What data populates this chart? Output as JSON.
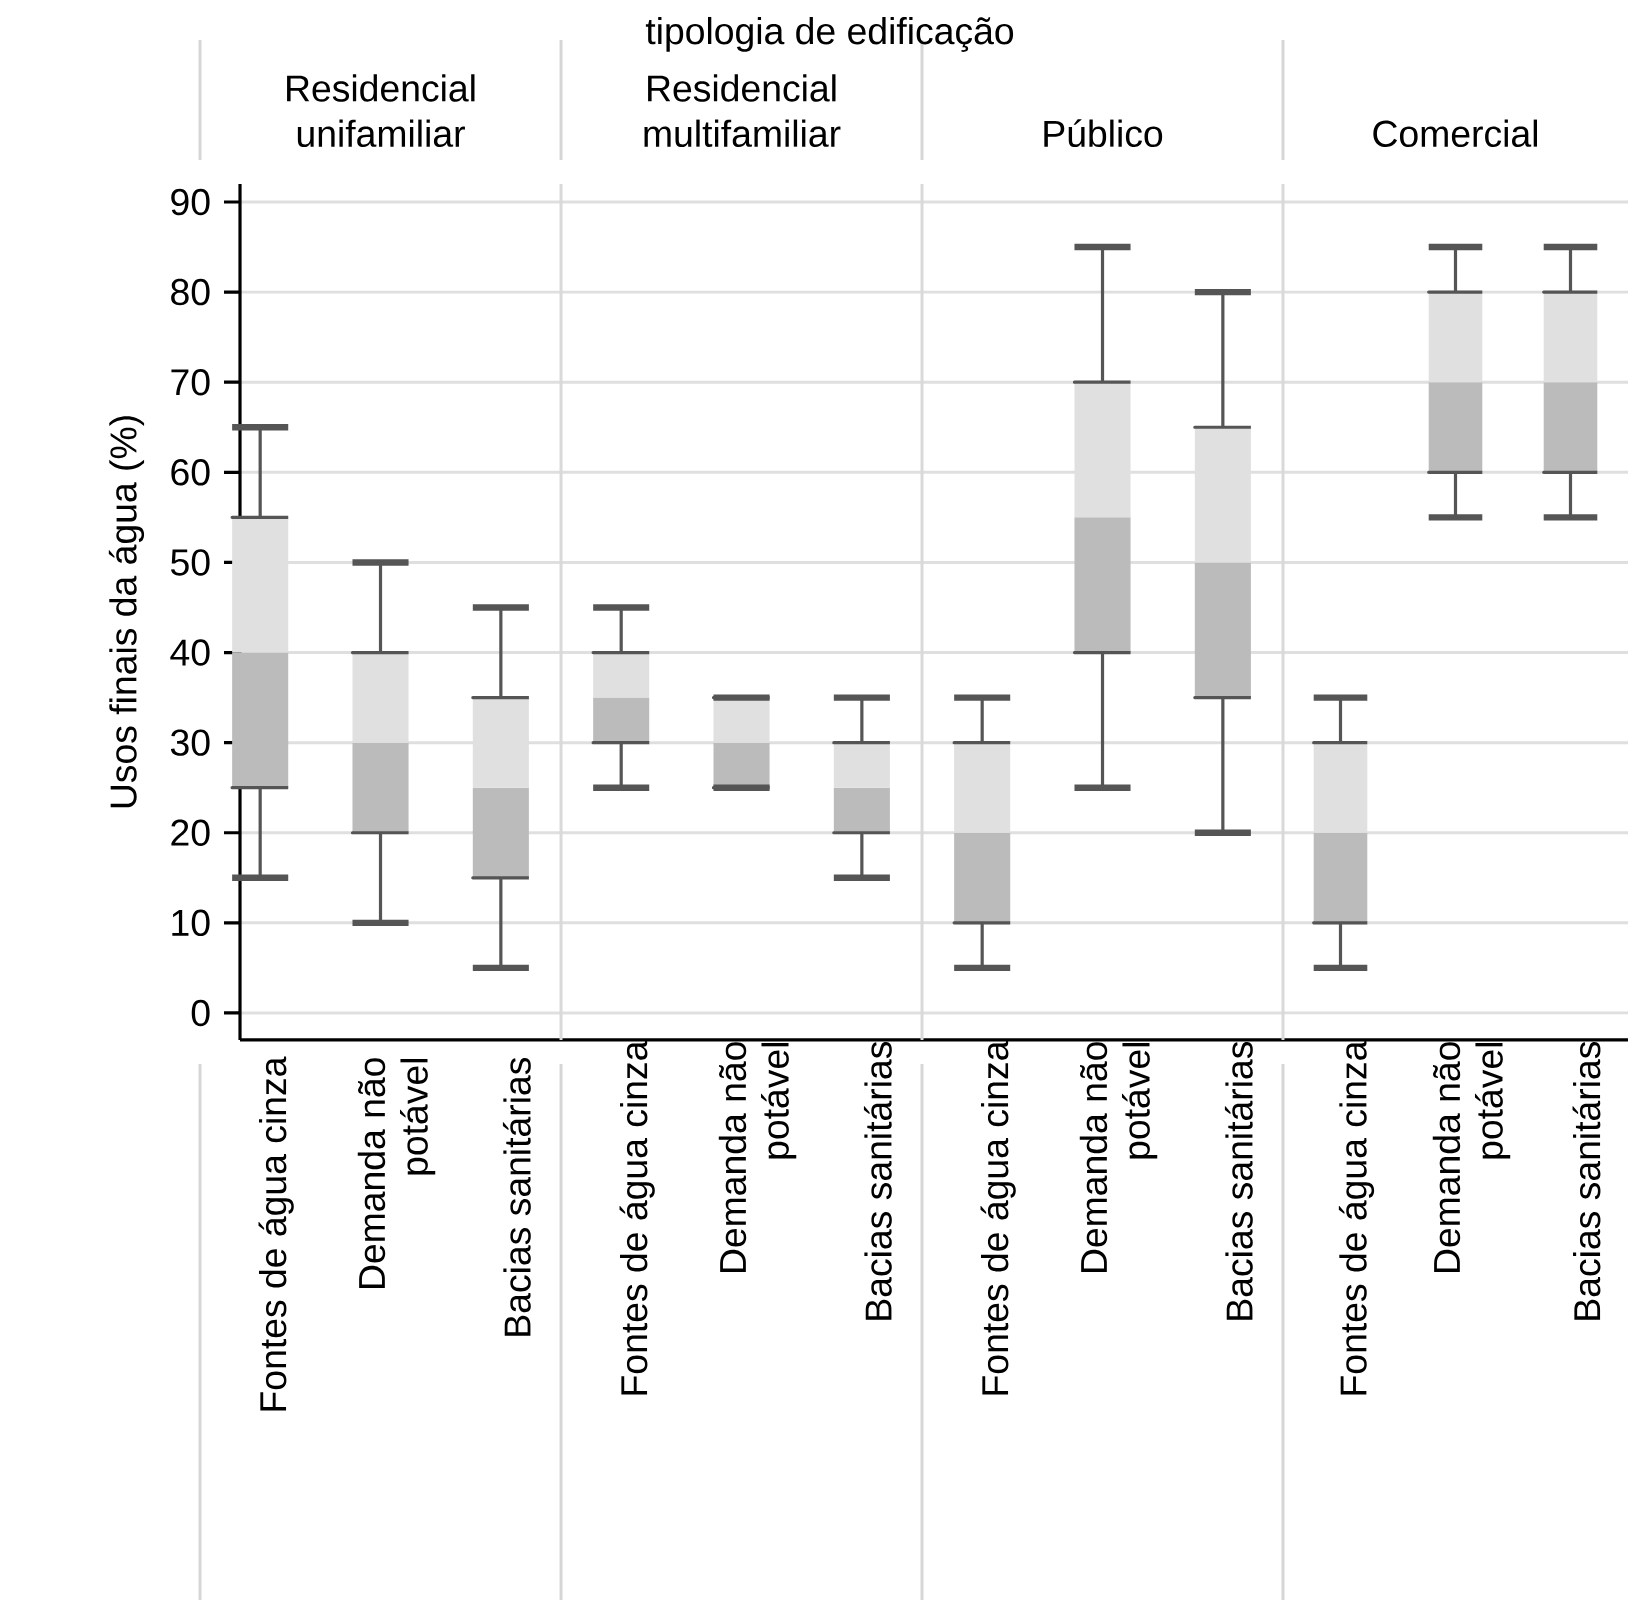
{
  "chart_data": [
    {
      "type": "box",
      "title": "Residencial unifamiliar",
      "ylabel": "Usos finais da água (%)",
      "annotations": [
        "tipologia de edificação"
      ],
      "categories": [
        "Fontes de água cinza",
        "Demanda não potável",
        "Bacias sanitárias"
      ],
      "ylim": [
        -3,
        92
      ],
      "yticks": [
        0,
        10,
        20,
        30,
        40,
        50,
        60,
        70,
        80,
        90
      ],
      "grid": "y",
      "boxes": [
        {
          "low": 15,
          "q1": 25,
          "median": 40,
          "q3": 55,
          "high": 65
        },
        {
          "low": 10,
          "q1": 20,
          "median": 30,
          "q3": 40,
          "high": 50
        },
        {
          "low": 5,
          "q1": 15,
          "median": 25,
          "q3": 35,
          "high": 45
        }
      ]
    },
    {
      "type": "box",
      "title": "Residencial multifamiliar",
      "categories": [
        "Fontes de água cinza",
        "Demanda não potável",
        "Bacias sanitárias"
      ],
      "ylim": [
        -3,
        92
      ],
      "yticks": [
        0,
        10,
        20,
        30,
        40,
        50,
        60,
        70,
        80,
        90
      ],
      "grid": "y",
      "tick_labels": "x",
      "boxes": [
        {
          "low": 25,
          "q1": 30,
          "median": 35,
          "q3": 40,
          "high": 45
        },
        {
          "low": 25,
          "q1": 25,
          "median": 30,
          "q3": 35,
          "high": 35
        },
        {
          "low": 15,
          "q1": 20,
          "median": 25,
          "q3": 30,
          "high": 35
        }
      ]
    },
    {
      "type": "box",
      "title": "Público",
      "categories": [
        "Fontes de água cinza",
        "Demanda não potável",
        "Bacias sanitárias"
      ],
      "ylim": [
        -3,
        92
      ],
      "yticks": [
        0,
        10,
        20,
        30,
        40,
        50,
        60,
        70,
        80,
        90
      ],
      "grid": "y",
      "tick_labels": "x",
      "boxes": [
        {
          "low": 5,
          "q1": 10,
          "median": 20,
          "q3": 30,
          "high": 35
        },
        {
          "low": 25,
          "q1": 40,
          "median": 55,
          "q3": 70,
          "high": 85
        },
        {
          "low": 20,
          "q1": 35,
          "median": 50,
          "q3": 65,
          "high": 80
        }
      ]
    },
    {
      "type": "box",
      "title": "Comercial",
      "categories": [
        "Fontes de água cinza",
        "Demanda não potável",
        "Bacias sanitárias"
      ],
      "ylim": [
        -3,
        92
      ],
      "yticks": [
        0,
        10,
        20,
        30,
        40,
        50,
        60,
        70,
        80,
        90
      ],
      "grid": "y",
      "tick_labels": "x",
      "boxes": [
        {
          "low": 5,
          "q1": 10,
          "median": 20,
          "q3": 30,
          "high": 35
        },
        {
          "low": 55,
          "q1": 60,
          "median": 70,
          "q3": 80,
          "high": 85
        },
        {
          "low": 55,
          "q1": 60,
          "median": 70,
          "q3": 80,
          "high": 85
        }
      ]
    }
  ]
}
